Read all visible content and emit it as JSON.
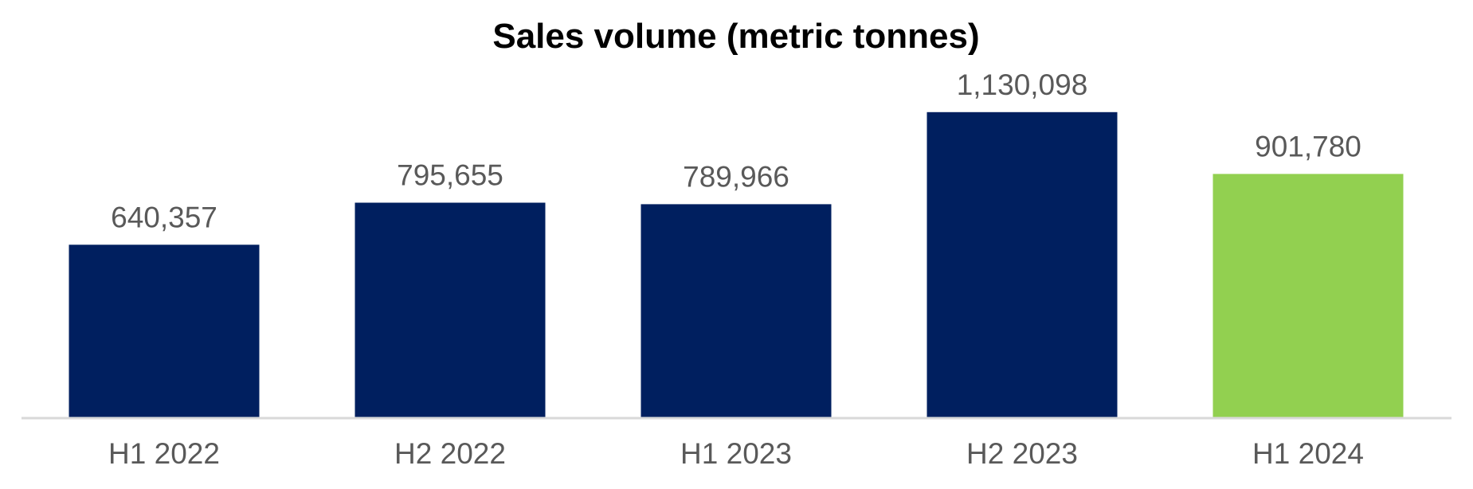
{
  "chart_data": {
    "type": "bar",
    "title": "Sales volume (metric tonnes)",
    "categories": [
      "H1 2022",
      "H2 2022",
      "H1 2023",
      "H2 2023",
      "H1 2024"
    ],
    "values": [
      640357,
      795655,
      789966,
      1130098,
      901780
    ],
    "value_labels": [
      "640,357",
      "795,655",
      "789,966",
      "1,130,098",
      "901,780"
    ],
    "ylim": [
      0,
      1250000
    ],
    "grid": false,
    "legend": "none",
    "colors": {
      "default_bar": "#001f5f",
      "highlight_bar": "#92d050",
      "axis_line": "#d9d9d9"
    },
    "bar_colors": [
      "#001f5f",
      "#001f5f",
      "#001f5f",
      "#001f5f",
      "#92d050"
    ]
  }
}
